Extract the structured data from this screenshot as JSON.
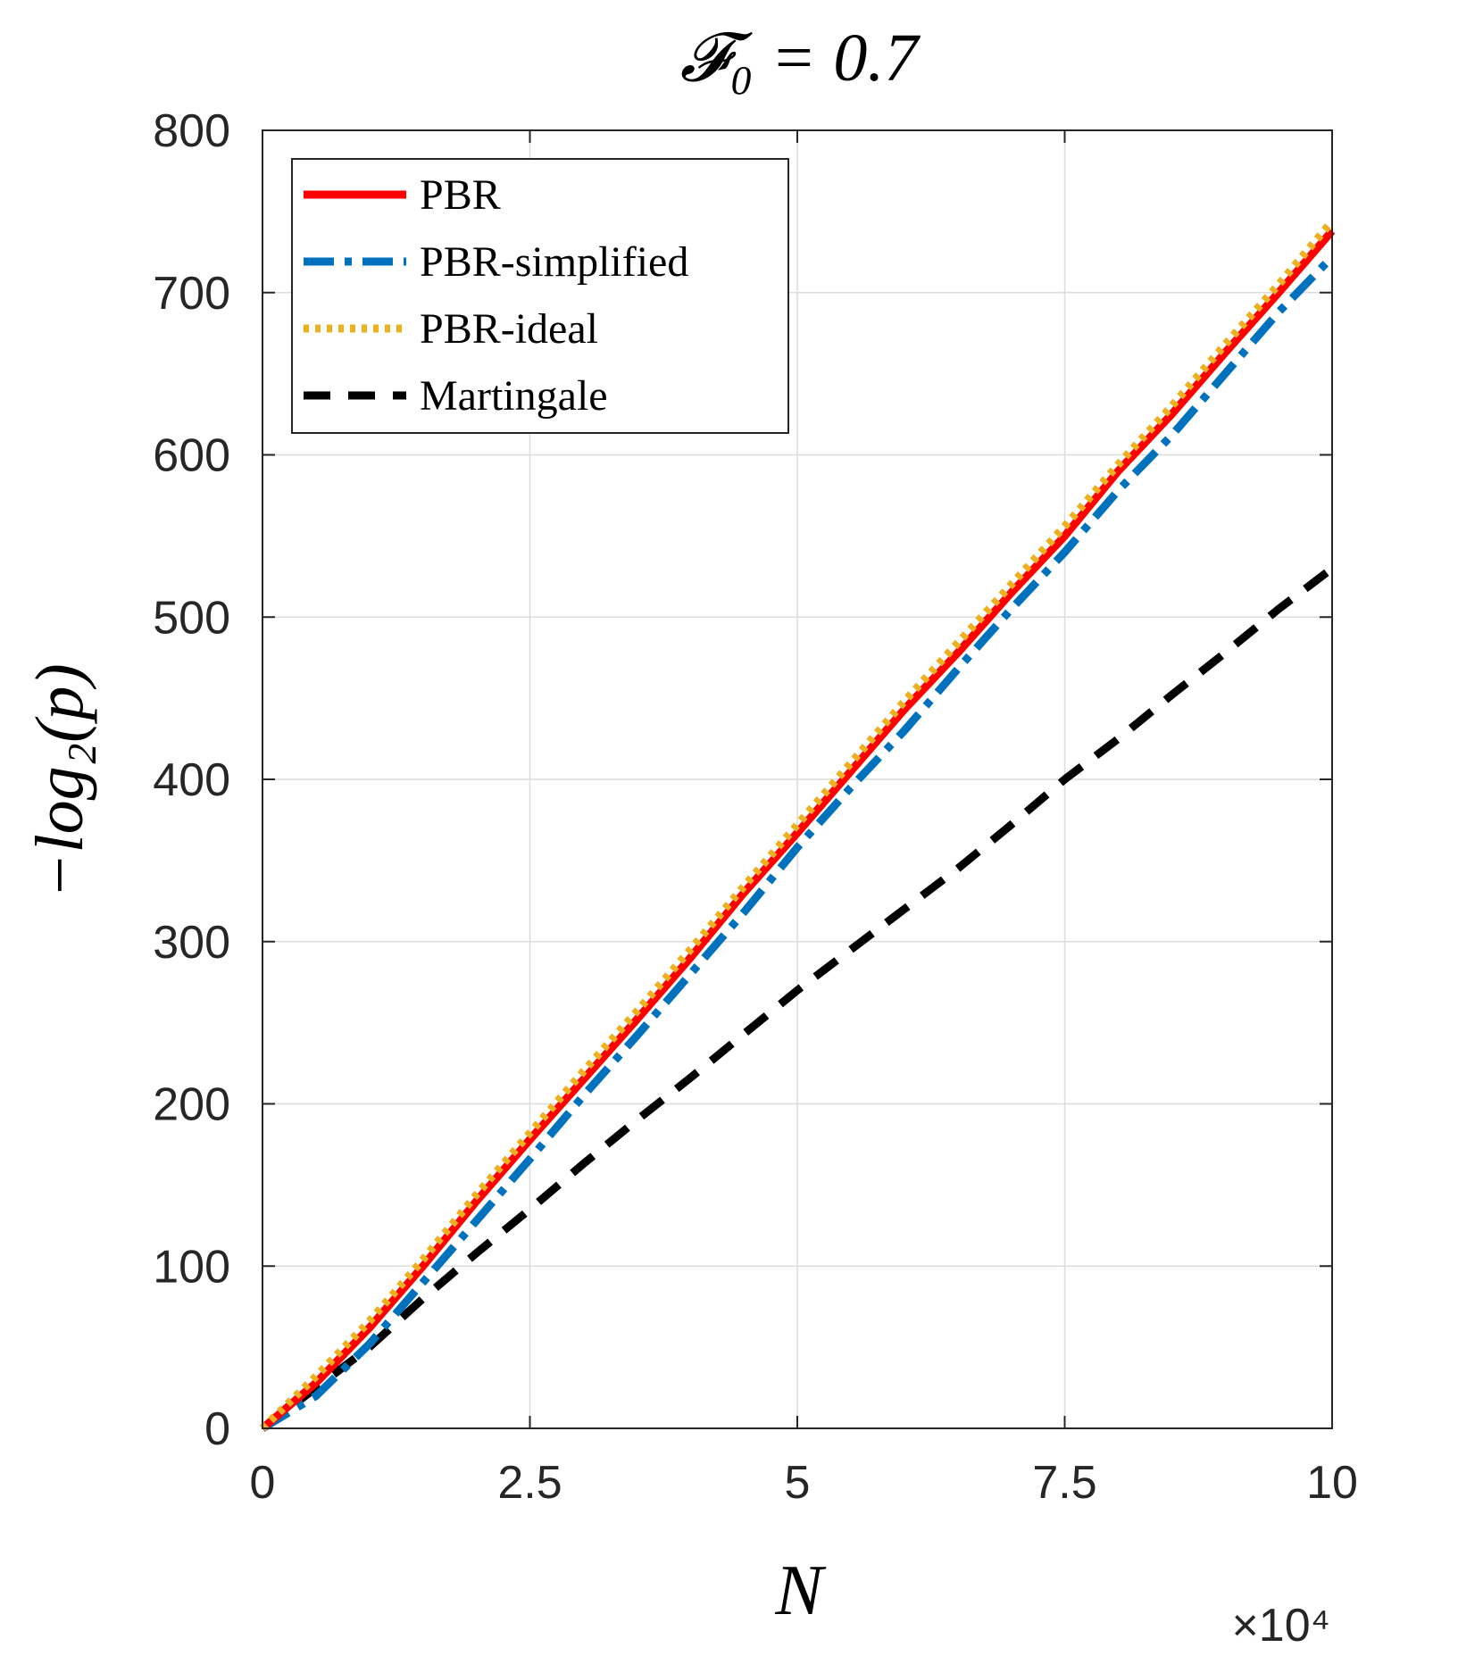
{
  "chart_data": {
    "type": "line",
    "title": "𝓕₀ = 0.7",
    "xlabel": "N",
    "ylabel": "−log₂(p)",
    "x_multiplier": "×10⁴",
    "xlim": [
      0,
      10
    ],
    "ylim": [
      0,
      800
    ],
    "x_ticks": [
      0,
      2.5,
      5,
      7.5,
      10
    ],
    "x_tick_labels": [
      "0",
      "2.5",
      "5",
      "7.5",
      "10"
    ],
    "y_ticks": [
      0,
      100,
      200,
      300,
      400,
      500,
      600,
      700,
      800
    ],
    "y_tick_labels": [
      "0",
      "100",
      "200",
      "300",
      "400",
      "500",
      "600",
      "700",
      "800"
    ],
    "grid": true,
    "legend_position": "top-left",
    "series": [
      {
        "name": "PBR",
        "color": "#ff0000",
        "style": "solid",
        "x": [
          0,
          0.5,
          1,
          1.5,
          2,
          2.5,
          3,
          3.5,
          4,
          4.5,
          5,
          5.5,
          6,
          6.5,
          7,
          7.5,
          8,
          8.5,
          9,
          9.5,
          10
        ],
        "y": [
          0,
          28,
          62,
          100,
          140,
          178,
          215,
          252,
          290,
          330,
          367,
          405,
          443,
          478,
          515,
          550,
          590,
          625,
          663,
          700,
          738
        ]
      },
      {
        "name": "PBR-simplified",
        "color": "#0072bd",
        "style": "dashdot",
        "x": [
          0,
          0.5,
          1,
          1.5,
          2,
          2.5,
          3,
          3.5,
          4,
          4.5,
          5,
          5.5,
          6,
          6.5,
          7,
          7.5,
          8,
          8.5,
          9,
          9.5,
          10
        ],
        "y": [
          0,
          20,
          52,
          90,
          128,
          166,
          205,
          242,
          280,
          318,
          358,
          395,
          430,
          468,
          505,
          540,
          578,
          612,
          650,
          688,
          722
        ]
      },
      {
        "name": "PBR-ideal",
        "color": "#edb120",
        "style": "dotted",
        "x": [
          0,
          0.5,
          1,
          1.5,
          2,
          2.5,
          3,
          3.5,
          4,
          4.5,
          5,
          5.5,
          6,
          6.5,
          7,
          7.5,
          8,
          8.5,
          9,
          9.5,
          10
        ],
        "y": [
          0,
          32,
          66,
          104,
          144,
          182,
          220,
          257,
          295,
          334,
          372,
          410,
          448,
          484,
          520,
          556,
          594,
          630,
          668,
          705,
          744
        ]
      },
      {
        "name": "Martingale",
        "color": "#000000",
        "style": "dashed",
        "x": [
          0,
          0.5,
          1,
          1.5,
          2,
          2.5,
          3,
          3.5,
          4,
          4.5,
          5,
          5.5,
          6,
          6.5,
          7,
          7.5,
          8,
          8.5,
          9,
          9.5,
          10
        ],
        "y": [
          0,
          25,
          50,
          80,
          108,
          135,
          163,
          190,
          216,
          243,
          270,
          295,
          320,
          345,
          372,
          400,
          425,
          452,
          478,
          505,
          530
        ]
      }
    ]
  }
}
